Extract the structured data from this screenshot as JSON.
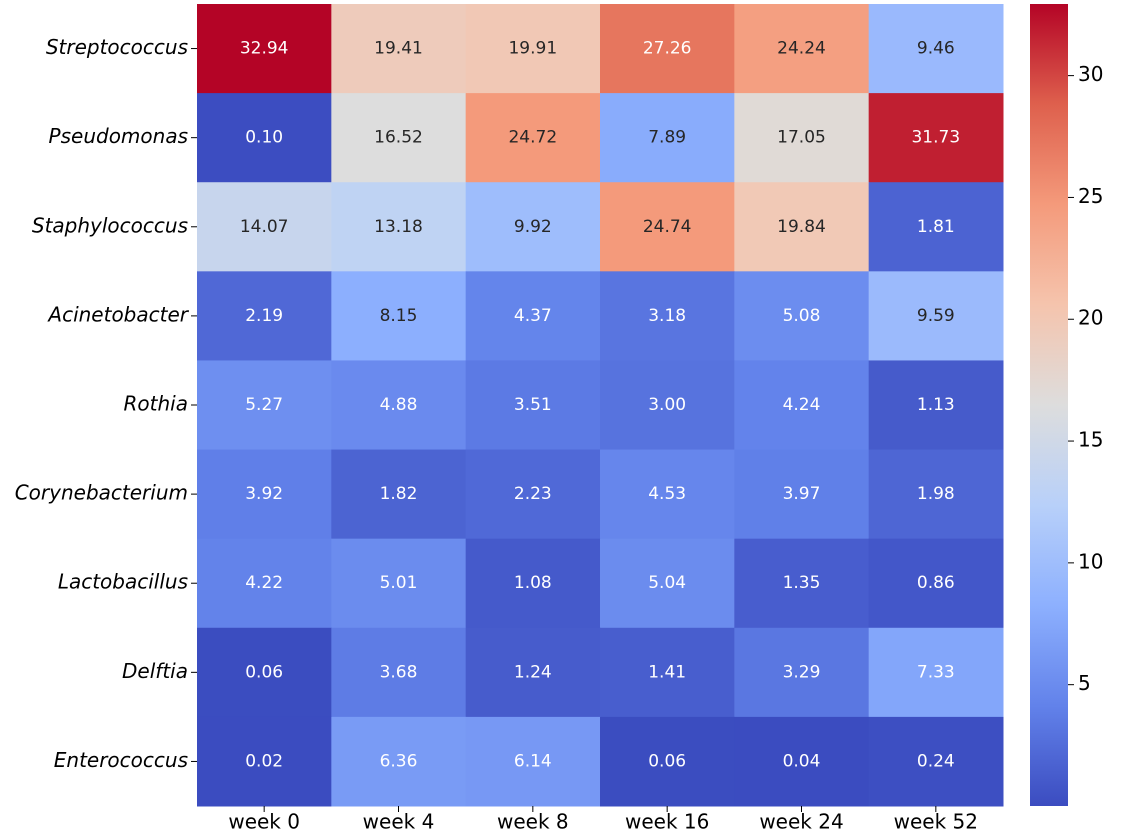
{
  "chart_data": {
    "type": "heatmap",
    "x_categories": [
      "week 0",
      "week 4",
      "week 8",
      "week 16",
      "week 24",
      "week 52"
    ],
    "y_categories": [
      "Streptococcus",
      "Pseudomonas",
      "Staphylococcus",
      "Acinetobacter",
      "Rothia",
      "Corynebacterium",
      "Lactobacillus",
      "Delftia",
      "Enterococcus"
    ],
    "values": [
      [
        32.94,
        19.41,
        19.91,
        27.26,
        24.24,
        9.46
      ],
      [
        0.1,
        16.52,
        24.72,
        7.89,
        17.05,
        31.73
      ],
      [
        14.07,
        13.18,
        9.92,
        24.74,
        19.84,
        1.81
      ],
      [
        2.19,
        8.15,
        4.37,
        3.18,
        5.08,
        9.59
      ],
      [
        5.27,
        4.88,
        3.51,
        3,
        4.24,
        1.13
      ],
      [
        3.92,
        1.82,
        2.23,
        4.53,
        3.97,
        1.98
      ],
      [
        4.22,
        5.01,
        1.08,
        5.04,
        1.35,
        0.86
      ],
      [
        0.06,
        3.68,
        1.24,
        1.41,
        3.29,
        7.33
      ],
      [
        0.02,
        6.36,
        6.14,
        0.06,
        0.04,
        0.24
      ]
    ],
    "value_labels": [
      [
        "32.94",
        "19.41",
        "19.91",
        "27.26",
        "24.24",
        "9.46"
      ],
      [
        "0.10",
        "16.52",
        "24.72",
        "7.89",
        "17.05",
        "31.73"
      ],
      [
        "14.07",
        "13.18",
        "9.92",
        "24.74",
        "19.84",
        "1.81"
      ],
      [
        "2.19",
        "8.15",
        "4.37",
        "3.18",
        "5.08",
        "9.59"
      ],
      [
        "5.27",
        "4.88",
        "3.51",
        "3.00",
        "4.24",
        "1.13"
      ],
      [
        "3.92",
        "1.82",
        "2.23",
        "4.53",
        "3.97",
        "1.98"
      ],
      [
        "4.22",
        "5.01",
        "1.08",
        "5.04",
        "1.35",
        "0.86"
      ],
      [
        "0.06",
        "3.68",
        "1.24",
        "1.41",
        "3.29",
        "7.33"
      ],
      [
        "0.02",
        "6.36",
        "6.14",
        "0.06",
        "0.04",
        "0.24"
      ]
    ],
    "colormap": "coolwarm",
    "clim": [
      0.02,
      32.94
    ],
    "cticks": [
      5,
      10,
      15,
      20,
      25,
      30
    ]
  }
}
